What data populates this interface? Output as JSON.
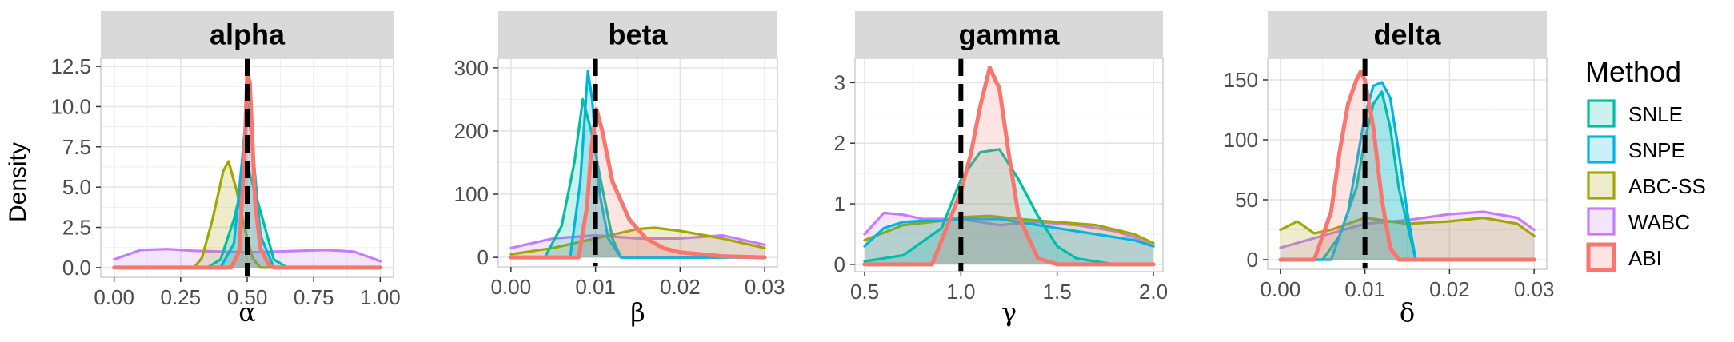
{
  "figure": {
    "ylabel": "Density"
  },
  "legend": {
    "title": "Method",
    "entries": [
      {
        "name": "SNLE",
        "color": "#00BFA0"
      },
      {
        "name": "SNPE",
        "color": "#00B4E0"
      },
      {
        "name": "ABC-SS",
        "color": "#A3A500"
      },
      {
        "name": "WABC",
        "color": "#C77CFF"
      },
      {
        "name": "ABI",
        "color": "#F8766D"
      }
    ]
  },
  "chart_data": [
    {
      "type": "area",
      "title": "alpha",
      "xlabel": "α",
      "ylabel": "Density",
      "xlim": [
        -0.05,
        1.05
      ],
      "ylim": [
        -0.6,
        13.0
      ],
      "xticks": [
        0,
        0.25,
        0.5,
        0.75,
        1
      ],
      "xtick_labels": [
        "0.00",
        "0.25",
        "0.50",
        "0.75",
        "1.00"
      ],
      "yticks": [
        0,
        2.5,
        5,
        7.5,
        10,
        12.5
      ],
      "ytick_labels": [
        "0.0",
        "2.5",
        "5.0",
        "7.5",
        "10.0",
        "12.5"
      ],
      "true_value": 0.5,
      "series": [
        {
          "name": "SNLE",
          "x": [
            0,
            0.35,
            0.4,
            0.45,
            0.5,
            0.55,
            0.6,
            0.65,
            1.0
          ],
          "y": [
            0,
            0,
            0.5,
            3.0,
            6.4,
            3.5,
            0.5,
            0,
            0
          ]
        },
        {
          "name": "SNPE",
          "x": [
            0,
            0.4,
            0.45,
            0.48,
            0.5,
            0.52,
            0.55,
            0.6,
            1.0
          ],
          "y": [
            0,
            0,
            1.5,
            6.5,
            10.3,
            7.5,
            2.0,
            0,
            0
          ]
        },
        {
          "name": "ABC-SS",
          "x": [
            0,
            0.3,
            0.33,
            0.37,
            0.41,
            0.43,
            0.46,
            0.49,
            0.52,
            0.55,
            1.0
          ],
          "y": [
            0,
            0,
            0.6,
            3.0,
            6.0,
            6.6,
            4.8,
            2.5,
            0.6,
            0,
            0
          ]
        },
        {
          "name": "WABC",
          "x": [
            0,
            0.1,
            0.2,
            0.3,
            0.4,
            0.5,
            0.6,
            0.7,
            0.8,
            0.9,
            1.0
          ],
          "y": [
            0.5,
            1.1,
            1.15,
            1.05,
            1.0,
            0.95,
            1.0,
            1.05,
            1.1,
            1.0,
            0.4
          ]
        },
        {
          "name": "ABI",
          "x": [
            0,
            0.44,
            0.47,
            0.49,
            0.5,
            0.51,
            0.53,
            0.55,
            0.58,
            0.6,
            1.0
          ],
          "y": [
            0,
            0,
            1.0,
            7.0,
            12.0,
            11.5,
            4.0,
            1.2,
            0.2,
            0,
            0
          ]
        }
      ]
    },
    {
      "type": "area",
      "title": "beta",
      "xlabel": "β",
      "ylabel": "Density",
      "xlim": [
        -0.0015,
        0.0315
      ],
      "ylim": [
        -15,
        315
      ],
      "xticks": [
        0,
        0.01,
        0.02,
        0.03
      ],
      "xtick_labels": [
        "0.00",
        "0.01",
        "0.02",
        "0.03"
      ],
      "yticks": [
        0,
        100,
        200,
        300
      ],
      "ytick_labels": [
        "0",
        "100",
        "200",
        "300"
      ],
      "true_value": 0.01,
      "series": [
        {
          "name": "SNLE",
          "x": [
            0,
            0.004,
            0.006,
            0.0075,
            0.0085,
            0.0095,
            0.0105,
            0.012,
            0.013,
            0.03
          ],
          "y": [
            0,
            0,
            50,
            150,
            250,
            200,
            130,
            30,
            0,
            0
          ]
        },
        {
          "name": "SNPE",
          "x": [
            0,
            0.007,
            0.0082,
            0.0091,
            0.0096,
            0.0105,
            0.0115,
            0.013,
            0.03
          ],
          "y": [
            0,
            0,
            120,
            295,
            250,
            100,
            30,
            0,
            0
          ]
        },
        {
          "name": "ABC-SS",
          "x": [
            0,
            0.005,
            0.01,
            0.015,
            0.017,
            0.02,
            0.025,
            0.03
          ],
          "y": [
            5,
            15,
            30,
            45,
            47,
            42,
            30,
            15
          ]
        },
        {
          "name": "WABC",
          "x": [
            0,
            0.005,
            0.01,
            0.015,
            0.02,
            0.025,
            0.03
          ],
          "y": [
            15,
            30,
            35,
            30,
            30,
            35,
            20
          ]
        },
        {
          "name": "ABI",
          "x": [
            0,
            0.008,
            0.009,
            0.0095,
            0.0101,
            0.0108,
            0.012,
            0.014,
            0.016,
            0.018,
            0.02,
            0.025,
            0.03
          ],
          "y": [
            0,
            0,
            80,
            170,
            235,
            200,
            120,
            60,
            30,
            15,
            8,
            2,
            0
          ]
        }
      ]
    },
    {
      "type": "area",
      "title": "gamma",
      "xlabel": "γ",
      "ylabel": "Density",
      "xlim": [
        0.45,
        2.05
      ],
      "ylim": [
        -0.12,
        3.4
      ],
      "xticks": [
        0.5,
        1,
        1.5,
        2
      ],
      "xtick_labels": [
        "0.5",
        "1.0",
        "1.5",
        "2.0"
      ],
      "yticks": [
        0,
        1,
        2,
        3
      ],
      "ytick_labels": [
        "0",
        "1",
        "2",
        "3"
      ],
      "true_value": 1.0,
      "series": [
        {
          "name": "SNLE",
          "x": [
            0.5,
            0.7,
            0.9,
            1.0,
            1.1,
            1.2,
            1.3,
            1.4,
            1.5,
            1.6,
            1.8,
            2.0
          ],
          "y": [
            0.05,
            0.15,
            0.6,
            1.4,
            1.85,
            1.9,
            1.4,
            0.8,
            0.3,
            0.1,
            0,
            0
          ]
        },
        {
          "name": "SNPE",
          "x": [
            0.5,
            0.6,
            0.7,
            0.8,
            0.9,
            1.0,
            1.2,
            1.3,
            1.5,
            1.7,
            1.9,
            2.0
          ],
          "y": [
            0.3,
            0.6,
            0.7,
            0.72,
            0.72,
            0.75,
            0.75,
            0.7,
            0.6,
            0.5,
            0.4,
            0.3
          ]
        },
        {
          "name": "ABC-SS",
          "x": [
            0.5,
            0.7,
            0.9,
            1.0,
            1.15,
            1.3,
            1.5,
            1.7,
            1.9,
            2.0
          ],
          "y": [
            0.4,
            0.65,
            0.72,
            0.78,
            0.8,
            0.75,
            0.7,
            0.65,
            0.5,
            0.35
          ]
        },
        {
          "name": "WABC",
          "x": [
            0.5,
            0.6,
            0.7,
            0.8,
            1.0,
            1.2,
            1.4,
            1.6,
            1.8,
            1.9,
            2.0
          ],
          "y": [
            0.5,
            0.85,
            0.82,
            0.75,
            0.75,
            0.65,
            0.7,
            0.65,
            0.55,
            0.45,
            0.3
          ]
        },
        {
          "name": "ABI",
          "x": [
            0.5,
            0.85,
            0.95,
            1.0,
            1.05,
            1.1,
            1.15,
            1.2,
            1.25,
            1.3,
            1.4,
            1.5,
            2.0
          ],
          "y": [
            0,
            0,
            0.8,
            1.2,
            1.8,
            2.6,
            3.25,
            2.9,
            1.8,
            0.8,
            0.1,
            0,
            0
          ]
        }
      ]
    },
    {
      "type": "area",
      "title": "delta",
      "xlabel": "δ",
      "ylabel": "Density",
      "xlim": [
        -0.0015,
        0.0315
      ],
      "ylim": [
        -8,
        168
      ],
      "xticks": [
        0,
        0.01,
        0.02,
        0.03
      ],
      "xtick_labels": [
        "0.00",
        "0.01",
        "0.02",
        "0.03"
      ],
      "yticks": [
        0,
        50,
        100,
        150
      ],
      "ytick_labels": [
        "0",
        "50",
        "100",
        "150"
      ],
      "true_value": 0.01,
      "series": [
        {
          "name": "SNLE",
          "x": [
            0,
            0.005,
            0.007,
            0.009,
            0.01,
            0.011,
            0.012,
            0.013,
            0.014,
            0.016,
            0.03
          ],
          "y": [
            0,
            0,
            20,
            60,
            100,
            130,
            140,
            110,
            60,
            0,
            0
          ]
        },
        {
          "name": "SNPE",
          "x": [
            0,
            0.006,
            0.008,
            0.009,
            0.01,
            0.011,
            0.012,
            0.013,
            0.014,
            0.015,
            0.016,
            0.03
          ],
          "y": [
            0,
            0,
            40,
            80,
            120,
            145,
            148,
            135,
            90,
            40,
            0,
            0
          ]
        },
        {
          "name": "ABC-SS",
          "x": [
            0,
            0.002,
            0.004,
            0.006,
            0.01,
            0.015,
            0.02,
            0.024,
            0.028,
            0.03
          ],
          "y": [
            25,
            32,
            22,
            25,
            35,
            30,
            32,
            35,
            30,
            20
          ]
        },
        {
          "name": "WABC",
          "x": [
            0,
            0.005,
            0.01,
            0.015,
            0.02,
            0.024,
            0.028,
            0.03
          ],
          "y": [
            10,
            20,
            30,
            33,
            38,
            40,
            35,
            25
          ]
        },
        {
          "name": "ABI",
          "x": [
            0,
            0.004,
            0.006,
            0.007,
            0.008,
            0.009,
            0.0095,
            0.01,
            0.011,
            0.012,
            0.013,
            0.014,
            0.03
          ],
          "y": [
            0,
            0,
            40,
            90,
            130,
            150,
            157,
            150,
            110,
            50,
            10,
            0,
            0
          ]
        }
      ]
    }
  ]
}
